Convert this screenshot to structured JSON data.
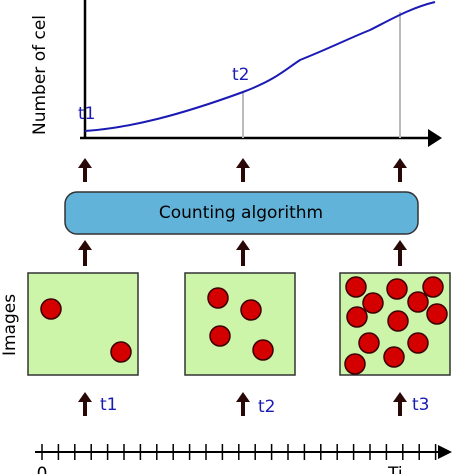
{
  "graph": {
    "y_label": "Number of cel",
    "point_labels": [
      "t1",
      "t2"
    ]
  },
  "algorithm": {
    "label": "Counting algorithm"
  },
  "images": {
    "label": "Images",
    "time_labels": [
      "t1",
      "t2",
      "t3"
    ]
  },
  "timeline": {
    "start_label": "0",
    "end_label": "Ti"
  }
}
